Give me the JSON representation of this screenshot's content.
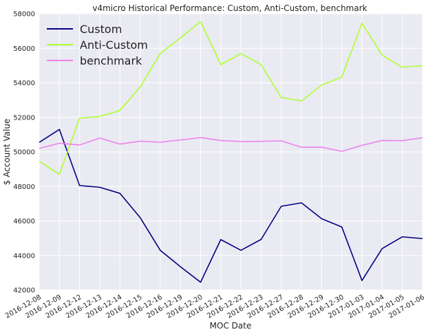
{
  "chart_data": {
    "type": "line",
    "title": "v4micro Historical Performance: Custom, Anti-Custom, benchmark",
    "xlabel": "MOC Date",
    "ylabel": "$ Account Value",
    "ylim": [
      42000,
      58000
    ],
    "yticks": [
      42000,
      44000,
      46000,
      48000,
      50000,
      52000,
      54000,
      56000,
      58000
    ],
    "grid": true,
    "legend_position": "top-left",
    "categories": [
      "2016-12-08",
      "2016-12-09",
      "2016-12-12",
      "2016-12-13",
      "2016-12-14",
      "2016-12-15",
      "2016-12-16",
      "2016-12-19",
      "2016-12-20",
      "2016-12-21",
      "2016-12-22",
      "2016-12-23",
      "2016-12-27",
      "2016-12-28",
      "2016-12-29",
      "2016-12-30",
      "2017-01-03",
      "2017-01-04",
      "2017-01-05",
      "2017-01-06"
    ],
    "series": [
      {
        "name": "Custom",
        "color": "#000080",
        "values": [
          50550,
          51300,
          48050,
          47950,
          47600,
          46200,
          44300,
          43350,
          42450,
          44920,
          44300,
          44930,
          46850,
          47050,
          46130,
          45650,
          42550,
          44400,
          45080,
          44980
        ]
      },
      {
        "name": "Anti-Custom",
        "color": "#adff2f",
        "values": [
          49450,
          48700,
          51950,
          52050,
          52400,
          53750,
          55700,
          56600,
          57550,
          55050,
          55700,
          55050,
          53150,
          52950,
          53870,
          54330,
          57450,
          55600,
          54900,
          55000
        ]
      },
      {
        "name": "benchmark",
        "color": "#ee82ee",
        "values": [
          50200,
          50500,
          50400,
          50800,
          50450,
          50620,
          50560,
          50690,
          50830,
          50660,
          50600,
          50610,
          50640,
          50270,
          50270,
          50030,
          50380,
          50660,
          50650,
          50820
        ]
      }
    ]
  }
}
